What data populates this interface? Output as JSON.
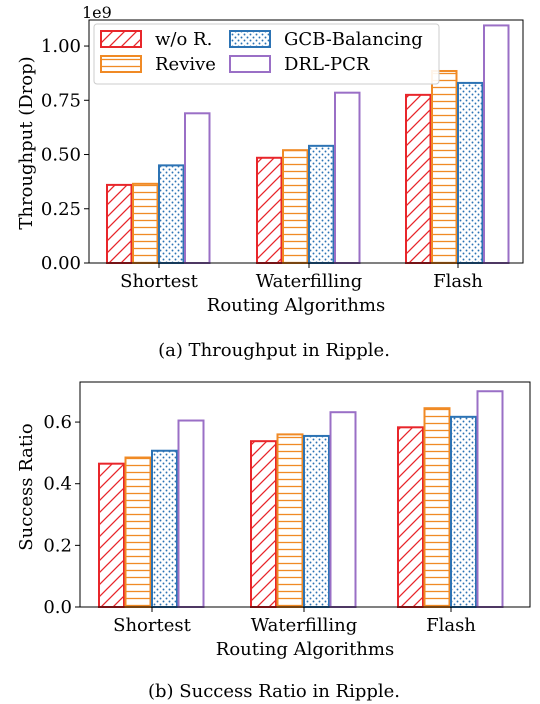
{
  "chart_data": [
    {
      "type": "bar",
      "title": "",
      "caption": "(a) Throughput in Ripple.",
      "xlabel": "Routing Algorithms",
      "ylabel": "Throughput (Drop)",
      "offset_label": "1e9",
      "categories": [
        "Shortest",
        "Waterfilling",
        "Flash"
      ],
      "ylim": [
        0,
        1.12
      ],
      "yticks": [
        0.0,
        0.25,
        0.5,
        0.75,
        1.0
      ],
      "ytick_labels": [
        "0.00",
        "0.25",
        "0.50",
        "0.75",
        "1.00"
      ],
      "grid": false,
      "legend_position": "top-left",
      "series": [
        {
          "name": "w/o R.",
          "values": [
            0.36,
            0.485,
            0.775
          ]
        },
        {
          "name": "Revive",
          "values": [
            0.365,
            0.52,
            0.885
          ]
        },
        {
          "name": "GCB-Balancing",
          "values": [
            0.45,
            0.54,
            0.83
          ]
        },
        {
          "name": "DRL-PCR",
          "values": [
            0.69,
            0.785,
            1.095
          ]
        }
      ]
    },
    {
      "type": "bar",
      "title": "",
      "caption": "(b) Success Ratio in Ripple.",
      "xlabel": "Routing Algorithms",
      "ylabel": "Success Ratio",
      "categories": [
        "Shortest",
        "Waterfilling",
        "Flash"
      ],
      "ylim": [
        0,
        0.73
      ],
      "yticks": [
        0.0,
        0.2,
        0.4,
        0.6
      ],
      "ytick_labels": [
        "0.0",
        "0.2",
        "0.4",
        "0.6"
      ],
      "grid": false,
      "series": [
        {
          "name": "w/o R.",
          "values": [
            0.465,
            0.538,
            0.583
          ]
        },
        {
          "name": "Revive",
          "values": [
            0.485,
            0.56,
            0.645
          ]
        },
        {
          "name": "GCB-Balancing",
          "values": [
            0.507,
            0.555,
            0.617
          ]
        },
        {
          "name": "DRL-PCR",
          "values": [
            0.605,
            0.632,
            0.7
          ]
        }
      ]
    }
  ],
  "series_colors": [
    "#e8262b",
    "#f08a25",
    "#2c73b4",
    "#9a6fc6"
  ],
  "series_patterns": [
    "diagonal-hatch",
    "horizontal-lines",
    "dots",
    "none"
  ]
}
